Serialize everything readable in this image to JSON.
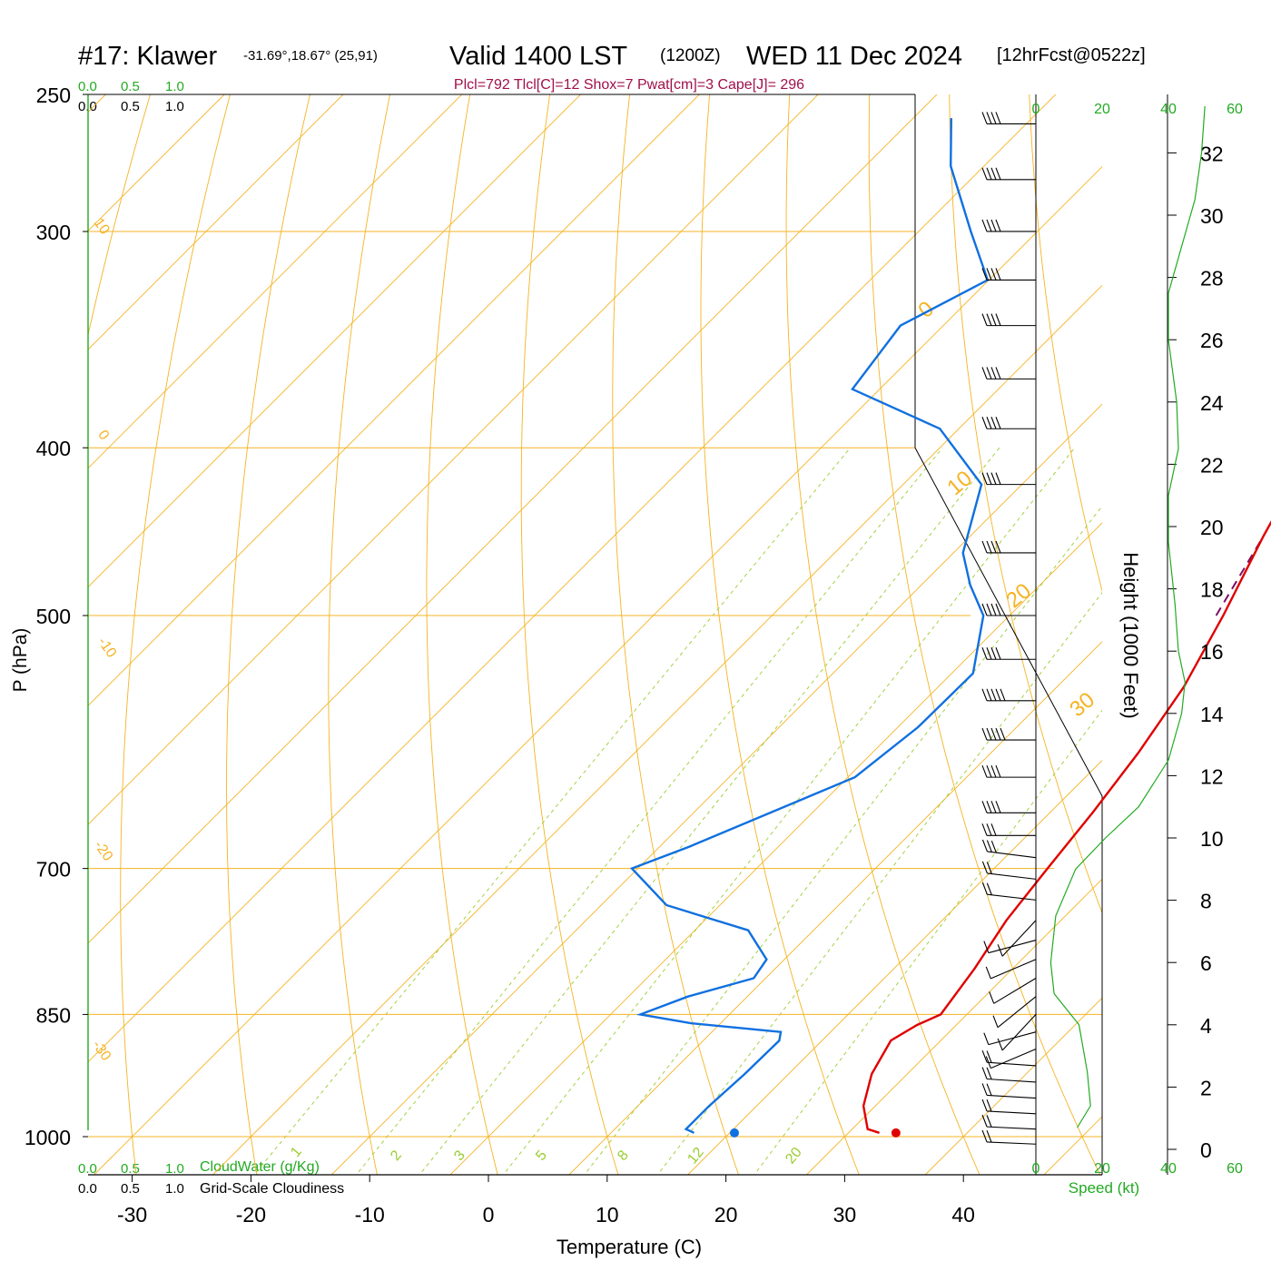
{
  "header": {
    "station": "#17: Klawer",
    "location": "-31.69°,18.67° (25,91)",
    "valid": "Valid 1400 LST",
    "utc": "(1200Z)",
    "date": "WED 11 Dec 2024",
    "forecast": "[12hrFcst@0522z]"
  },
  "indices": "Plcl=792 Tlcl[C]=12 Shox=7 Pwat[cm]=3 Cape[J]= 296",
  "cloud_scale": {
    "ticks": [
      "0.0",
      "0.5",
      "1.0"
    ],
    "cloudwater_label": "CloudWater (g/Kg)",
    "cloudiness_label": "Grid-Scale Cloudiness"
  },
  "colors": {
    "isobar": "#f5b323",
    "isotherm": "#f5b323",
    "dry_adiabat": "#f5b323",
    "moist_adiabat": "#9acd32",
    "mixing_ratio": "#9acd32",
    "temperature": "#e00000",
    "dewpoint": "#1070e0",
    "parcel": "#7a1060",
    "green_text": "#22aa22",
    "maroon_text": "#a0104a"
  },
  "chart_data": {
    "type": "skew-t",
    "xlabel": "Temperature (C)",
    "ylabel": "P (hPa)",
    "x_ticks": [
      -30,
      -20,
      -10,
      0,
      10,
      20,
      30,
      40
    ],
    "p_ticks": [
      250,
      300,
      400,
      500,
      700,
      850,
      1000
    ],
    "p_range": [
      250,
      1080
    ],
    "isotherm_labels": [
      {
        "t": 0,
        "text": "0"
      },
      {
        "t": 10,
        "text": "10"
      },
      {
        "t": 20,
        "text": "20"
      },
      {
        "t": 30,
        "text": "30"
      }
    ],
    "left_labels": [
      "10",
      "0",
      "-10",
      "-20",
      "-30"
    ],
    "mixing_ratio_labels": [
      "1",
      "2",
      "3",
      "5",
      "8",
      "12",
      "20"
    ],
    "temperature_profile": [
      {
        "p": 995,
        "t": 32.6
      },
      {
        "p": 990,
        "t": 31.3
      },
      {
        "p": 960,
        "t": 29.0
      },
      {
        "p": 920,
        "t": 27.0
      },
      {
        "p": 880,
        "t": 25.8
      },
      {
        "p": 862,
        "t": 26.7
      },
      {
        "p": 850,
        "t": 27.8
      },
      {
        "p": 800,
        "t": 26.8
      },
      {
        "p": 750,
        "t": 25.4
      },
      {
        "p": 700,
        "t": 24.5
      },
      {
        "p": 650,
        "t": 23.6
      },
      {
        "p": 600,
        "t": 22.4
      },
      {
        "p": 550,
        "t": 20.7
      },
      {
        "p": 500,
        "t": 18.0
      },
      {
        "p": 450,
        "t": 14.7
      },
      {
        "p": 400,
        "t": 11.4
      },
      {
        "p": 360,
        "t": 9.6
      },
      {
        "p": 320,
        "t": 4.3
      },
      {
        "p": 300,
        "t": 0.7
      },
      {
        "p": 270,
        "t": -3.7
      },
      {
        "p": 258,
        "t": -5.8
      }
    ],
    "dewpoint_profile": [
      {
        "p": 995,
        "td": 17.0
      },
      {
        "p": 990,
        "td": 16.0
      },
      {
        "p": 960,
        "td": 16.0
      },
      {
        "p": 920,
        "td": 16.3
      },
      {
        "p": 880,
        "td": 16.4
      },
      {
        "p": 870,
        "td": 15.8
      },
      {
        "p": 860,
        "td": 7.5
      },
      {
        "p": 850,
        "td": 2.5
      },
      {
        "p": 830,
        "td": 5.0
      },
      {
        "p": 810,
        "td": 9.0
      },
      {
        "p": 790,
        "td": 8.5
      },
      {
        "p": 760,
        "td": 4.5
      },
      {
        "p": 735,
        "td": -4.5
      },
      {
        "p": 700,
        "td": -10.5
      },
      {
        "p": 680,
        "td": -7.5
      },
      {
        "p": 620,
        "td": 0.6
      },
      {
        "p": 580,
        "td": 1.7
      },
      {
        "p": 540,
        "td": 1.8
      },
      {
        "p": 500,
        "td": -2.2
      },
      {
        "p": 480,
        "td": -5.9
      },
      {
        "p": 460,
        "td": -9.2
      },
      {
        "p": 420,
        "td": -13.4
      },
      {
        "p": 390,
        "td": -21.6
      },
      {
        "p": 370,
        "td": -32.3
      },
      {
        "p": 340,
        "td": -33.6
      },
      {
        "p": 320,
        "td": -30.1
      },
      {
        "p": 300,
        "td": -35.6
      },
      {
        "p": 275,
        "td": -42.8
      },
      {
        "p": 258,
        "td": -46.8
      }
    ],
    "parcel_profile": [
      {
        "p": 500,
        "t": 17.4
      },
      {
        "p": 450,
        "t": 14.7
      },
      {
        "p": 400,
        "t": 11.4
      },
      {
        "p": 360,
        "t": 7.0
      },
      {
        "p": 330,
        "t": 2.8
      },
      {
        "p": 300,
        "t": -1.4
      },
      {
        "p": 258,
        "t": -6.3
      }
    ],
    "surface": {
      "t": 34.0,
      "td": 20.4,
      "p": 995
    },
    "wind_speed_profile": {
      "xlabel": "Speed (kt)",
      "ylabel": "Height (1000 Feet)",
      "speed_ticks": [
        0,
        20,
        40,
        60
      ],
      "height_ticks": [
        0,
        2,
        4,
        6,
        8,
        10,
        12,
        14,
        16,
        18,
        20,
        22,
        24,
        26,
        28,
        30,
        32
      ],
      "points": [
        {
          "h": 0.7,
          "s": 12.5
        },
        {
          "h": 1.4,
          "s": 16.5
        },
        {
          "h": 2.5,
          "s": 15.5
        },
        {
          "h": 4.0,
          "s": 13.0
        },
        {
          "h": 5.0,
          "s": 5.5
        },
        {
          "h": 6.0,
          "s": 4.5
        },
        {
          "h": 7.5,
          "s": 6.0
        },
        {
          "h": 9.0,
          "s": 12.0
        },
        {
          "h": 10.0,
          "s": 21.0
        },
        {
          "h": 11.0,
          "s": 31.0
        },
        {
          "h": 12.5,
          "s": 40.0
        },
        {
          "h": 14.0,
          "s": 44.0
        },
        {
          "h": 15.0,
          "s": 45.0
        },
        {
          "h": 16.0,
          "s": 43.0
        },
        {
          "h": 17.5,
          "s": 42.0
        },
        {
          "h": 19.5,
          "s": 40.0
        },
        {
          "h": 21.0,
          "s": 40.0
        },
        {
          "h": 22.5,
          "s": 43.0
        },
        {
          "h": 24.0,
          "s": 42.5
        },
        {
          "h": 26.0,
          "s": 40.0
        },
        {
          "h": 27.5,
          "s": 40.0
        },
        {
          "h": 29.0,
          "s": 44.0
        },
        {
          "h": 30.5,
          "s": 48.0
        },
        {
          "h": 32.0,
          "s": 50.0
        },
        {
          "h": 33.5,
          "s": 51.0
        }
      ]
    },
    "wind_barbs": [
      {
        "p": 260,
        "speed": 40
      },
      {
        "p": 280,
        "speed": 40
      },
      {
        "p": 300,
        "speed": 40
      },
      {
        "p": 320,
        "speed": 40
      },
      {
        "p": 340,
        "speed": 40
      },
      {
        "p": 365,
        "speed": 40
      },
      {
        "p": 390,
        "speed": 40
      },
      {
        "p": 420,
        "speed": 40
      },
      {
        "p": 460,
        "speed": 40
      },
      {
        "p": 500,
        "speed": 40
      },
      {
        "p": 530,
        "speed": 40
      },
      {
        "p": 560,
        "speed": 45
      },
      {
        "p": 590,
        "speed": 45
      },
      {
        "p": 620,
        "speed": 40
      },
      {
        "p": 650,
        "speed": 35
      },
      {
        "p": 670,
        "speed": 30
      },
      {
        "p": 690,
        "speed": 25
      },
      {
        "p": 710,
        "speed": 20
      },
      {
        "p": 730,
        "speed": 15
      },
      {
        "p": 750,
        "speed": 10
      },
      {
        "p": 770,
        "speed": 10
      },
      {
        "p": 790,
        "speed": 5
      },
      {
        "p": 810,
        "speed": 5
      },
      {
        "p": 830,
        "speed": 5
      },
      {
        "p": 850,
        "speed": 5
      },
      {
        "p": 870,
        "speed": 10
      },
      {
        "p": 890,
        "speed": 10
      },
      {
        "p": 910,
        "speed": 15
      },
      {
        "p": 930,
        "speed": 15
      },
      {
        "p": 950,
        "speed": 15
      },
      {
        "p": 970,
        "speed": 15
      },
      {
        "p": 990,
        "speed": 15
      },
      {
        "p": 1010,
        "speed": 15
      }
    ]
  }
}
